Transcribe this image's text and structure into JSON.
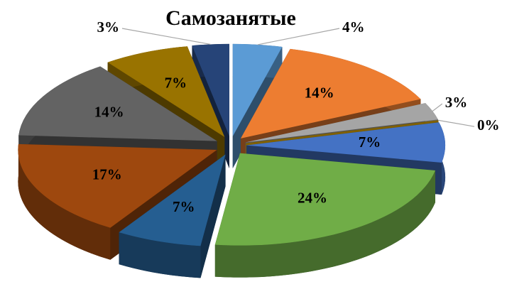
{
  "chart_data": {
    "type": "pie",
    "title": "Самозанятые",
    "values": [
      4,
      14,
      3,
      0,
      7,
      24,
      7,
      17,
      14,
      7,
      3
    ],
    "value_labels": [
      "4%",
      "14%",
      "3%",
      "0%",
      "7%",
      "24%",
      "7%",
      "17%",
      "14%",
      "7%",
      "3%"
    ],
    "colors": [
      "#5b9bd5",
      "#ed7d31",
      "#a5a5a5",
      "#ffc000",
      "#4472c4",
      "#70ad47",
      "#255e91",
      "#9e480e",
      "#636363",
      "#997300",
      "#264478"
    ]
  }
}
